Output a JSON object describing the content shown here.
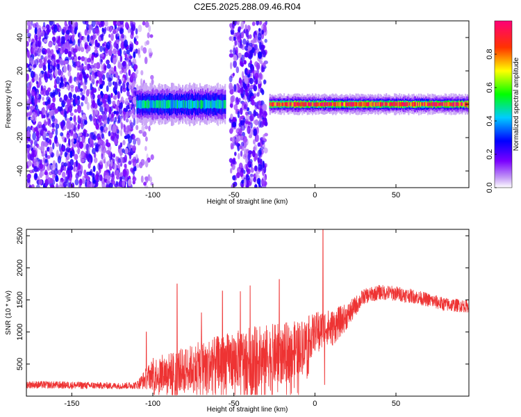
{
  "title": "C2E5.2025.288.09.46.R04",
  "chart_data": [
    {
      "type": "heatmap",
      "xlabel": "Height of straight line (km)",
      "ylabel": "Frequency (Hz)",
      "xlim": [
        -178,
        95
      ],
      "ylim": [
        -50,
        50
      ],
      "xticks": [
        -150,
        -100,
        -50,
        0,
        50
      ],
      "xtick_labels": [
        "-150",
        "-100",
        "-50",
        "0",
        "50"
      ],
      "yticks": [
        -40,
        -20,
        0,
        20,
        40
      ],
      "ytick_labels": [
        "-40",
        "-20",
        "0",
        "20",
        "40"
      ],
      "colorbar": {
        "label": "Normalized spectral amplitude",
        "range": [
          0,
          1
        ],
        "ticks": [
          0.0,
          0.2,
          0.4,
          0.6,
          0.8
        ],
        "tick_labels": [
          "0.0",
          "0.2",
          "0.4",
          "0.6",
          "0.8"
        ],
        "colormap": "rainbow (white-purple-blue-cyan-green-yellow-red-magenta)"
      },
      "regions": [
        {
          "x": [
            -178,
            -110
          ],
          "pattern": "broadband speckle",
          "freq_spread": [
            -50,
            50
          ],
          "amplitude": 0.15
        },
        {
          "x": [
            -110,
            -100
          ],
          "pattern": "sparse speckle",
          "freq_spread": [
            -50,
            50
          ],
          "amplitude": 0.08
        },
        {
          "x": [
            -110,
            -55
          ],
          "pattern": "narrow band",
          "freq_spread": [
            -6,
            6
          ],
          "amplitude": 0.45
        },
        {
          "x": [
            -52,
            -30
          ],
          "pattern": "broadband speckle",
          "freq_spread": [
            -50,
            50
          ],
          "amplitude": 0.15
        },
        {
          "x": [
            -28,
            95
          ],
          "pattern": "narrow band",
          "freq_spread": [
            -3,
            3
          ],
          "amplitude": 0.9
        }
      ]
    },
    {
      "type": "line",
      "xlabel": "Height of straight line (km)",
      "ylabel": "SNR (10 * v/v)",
      "xlim": [
        -178,
        95
      ],
      "ylim": [
        0,
        2600
      ],
      "xticks": [
        -150,
        -100,
        -50,
        0,
        50
      ],
      "xtick_labels": [
        "-150",
        "-100",
        "-50",
        "0",
        "50"
      ],
      "yticks": [
        500,
        1000,
        1500,
        2000,
        2500
      ],
      "ytick_labels": [
        "500",
        "1000",
        "1500",
        "2000",
        "2500"
      ],
      "line_color": "#ee3333",
      "envelope": {
        "x": [
          -178,
          -150,
          -120,
          -110,
          -100,
          -90,
          -80,
          -70,
          -60,
          -50,
          -40,
          -30,
          -20,
          -10,
          0,
          5,
          10,
          20,
          30,
          40,
          50,
          60,
          70,
          80,
          95
        ],
        "mean": [
          180,
          170,
          160,
          170,
          350,
          380,
          420,
          480,
          520,
          560,
          600,
          620,
          660,
          760,
          1000,
          1100,
          1050,
          1250,
          1550,
          1620,
          1600,
          1560,
          1500,
          1430,
          1400
        ],
        "spread": [
          60,
          60,
          50,
          60,
          250,
          300,
          350,
          380,
          420,
          450,
          480,
          500,
          480,
          420,
          300,
          250,
          300,
          200,
          120,
          120,
          120,
          110,
          110,
          110,
          100
        ]
      },
      "spikes": [
        {
          "x": -104,
          "y": 1000
        },
        {
          "x": -85,
          "y": 1750
        },
        {
          "x": -70,
          "y": 1300
        },
        {
          "x": -57,
          "y": 1640
        },
        {
          "x": -46,
          "y": 1630
        },
        {
          "x": -40,
          "y": 1720
        },
        {
          "x": -22,
          "y": 1820
        },
        {
          "x": 5,
          "y": 2600
        },
        {
          "x": 6,
          "y": 180
        }
      ]
    }
  ]
}
